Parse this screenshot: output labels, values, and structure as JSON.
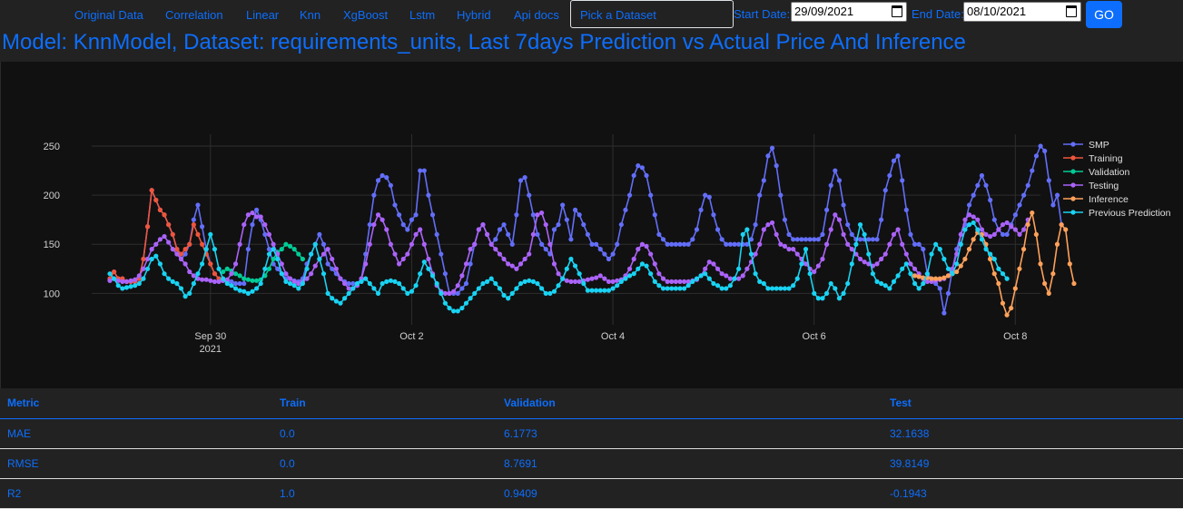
{
  "nav": {
    "links": [
      "Original Data",
      "Correlation",
      "Linear",
      "Knn",
      "XgBoost",
      "Lstm",
      "Hybrid",
      "Api docs"
    ],
    "dataset_placeholder": "Pick a Dataset",
    "start_label": "Start Date:",
    "start_value": "29/09/2021",
    "end_label": "End Date:",
    "end_value": "08/10/2021",
    "go_label": "GO"
  },
  "title": "Model: KnnModel, Dataset: requirements_units, Last 7days Prediction vs Actual Price And Inference",
  "chart_data": {
    "type": "line",
    "x_unit": "days",
    "x_ticks": [
      {
        "x": 1.0,
        "label": "Sep 30",
        "sublabel": "2021"
      },
      {
        "x": 3.0,
        "label": "Oct 2",
        "sublabel": ""
      },
      {
        "x": 5.0,
        "label": "Oct 4",
        "sublabel": ""
      },
      {
        "x": 7.0,
        "label": "Oct 6",
        "sublabel": ""
      },
      {
        "x": 9.0,
        "label": "Oct 8",
        "sublabel": ""
      }
    ],
    "y_ticks": [
      100,
      150,
      200,
      250
    ],
    "xlim": [
      0.0,
      9.25
    ],
    "ylim": [
      68,
      262
    ],
    "grid": true,
    "legend_position": "right",
    "series": [
      {
        "name": "SMP",
        "color": "#636efa",
        "x0": 0.0,
        "dx": 0.04167,
        "values": [
          115,
          122,
          115,
          115,
          112,
          112,
          112,
          115,
          135,
          168,
          205,
          195,
          185,
          180,
          170,
          160,
          145,
          135,
          140,
          150,
          175,
          190,
          168,
          145,
          130,
          120,
          115,
          113,
          112,
          112,
          110,
          110,
          110,
          145,
          170,
          185,
          175,
          160,
          145,
          130,
          125,
          120,
          115,
          115,
          113,
          112,
          115,
          130,
          140,
          150,
          160,
          150,
          130,
          125,
          120,
          115,
          112,
          110,
          110,
          110,
          115,
          140,
          170,
          200,
          215,
          220,
          218,
          210,
          190,
          180,
          170,
          165,
          175,
          180,
          225,
          225,
          200,
          180,
          160,
          140,
          120,
          100,
          100,
          100,
          105,
          110,
          130,
          150,
          165,
          170,
          160,
          150,
          155,
          165,
          170,
          160,
          150,
          180,
          215,
          218,
          200,
          180,
          160,
          150,
          145,
          140,
          165,
          170,
          190,
          175,
          155,
          185,
          180,
          170,
          160,
          150,
          150,
          145,
          140,
          135,
          140,
          150,
          170,
          185,
          200,
          220,
          230,
          228,
          220,
          200,
          180,
          160,
          155,
          150,
          150,
          150,
          150,
          150,
          150,
          155,
          165,
          185,
          200,
          198,
          180,
          165,
          155,
          150,
          150,
          150,
          150,
          150,
          150,
          155,
          170,
          200,
          215,
          240,
          248,
          230,
          200,
          175,
          160,
          155,
          155,
          155,
          155,
          155,
          155,
          155,
          160,
          185,
          210,
          225,
          215,
          190,
          170,
          160,
          155,
          155,
          155,
          155,
          155,
          155,
          175,
          205,
          220,
          235,
          240,
          215,
          185,
          160,
          150,
          150,
          145,
          120,
          115,
          110,
          105,
          80,
          100,
          125,
          145,
          160,
          170,
          190,
          200,
          210,
          220,
          210,
          195,
          175,
          165,
          160,
          160,
          170,
          180,
          190,
          200,
          210,
          225,
          240,
          250,
          245,
          215,
          190,
          200,
          170
        ]
      },
      {
        "name": "Training",
        "color": "#ef553b",
        "x0": 0.0,
        "dx": 0.04167,
        "values": [
          115,
          122,
          115,
          115,
          112,
          112,
          112,
          115,
          135,
          168,
          205,
          195,
          185,
          180,
          170,
          160,
          145,
          140,
          145,
          150,
          170,
          160,
          150,
          140,
          130,
          120,
          115
        ]
      },
      {
        "name": "Validation",
        "color": "#00cc96",
        "x0": 1.125,
        "dx": 0.04167,
        "values": [
          122,
          125,
          123,
          120,
          118,
          115,
          114,
          113,
          113,
          114,
          118,
          125,
          135,
          142,
          145,
          150,
          148,
          145,
          140,
          135
        ]
      },
      {
        "name": "Testing",
        "color": "#ab63fa",
        "x0": 0.0,
        "dx": 0.04167,
        "values": [
          113,
          115,
          113,
          112,
          112,
          113,
          114,
          118,
          125,
          135,
          145,
          150,
          155,
          158,
          152,
          145,
          140,
          135,
          130,
          122,
          118,
          115,
          114,
          114,
          113,
          112,
          112,
          113,
          114,
          120,
          130,
          150,
          170,
          180,
          182,
          178,
          178,
          170,
          160,
          150,
          140,
          130,
          120,
          115,
          112,
          110,
          112,
          115,
          120,
          128,
          135,
          140,
          145,
          135,
          125,
          115,
          110,
          105,
          105,
          108,
          115,
          130,
          150,
          170,
          180,
          175,
          165,
          150,
          140,
          130,
          135,
          140,
          150,
          160,
          165,
          150,
          135,
          120,
          108,
          102,
          100,
          100,
          102,
          108,
          118,
          130,
          145,
          150,
          165,
          170,
          160,
          150,
          145,
          140,
          135,
          130,
          128,
          125,
          130,
          135,
          140,
          160,
          180,
          182,
          170,
          150,
          130,
          120,
          115,
          113,
          112,
          112,
          112,
          113,
          114,
          115,
          116,
          118,
          115,
          112,
          112,
          113,
          114,
          118,
          125,
          135,
          145,
          150,
          148,
          140,
          130,
          120,
          115,
          112,
          112,
          112,
          112,
          112,
          112,
          113,
          114,
          118,
          125,
          132,
          130,
          125,
          120,
          118,
          115,
          115,
          115,
          118,
          125,
          132,
          140,
          150,
          165,
          170,
          172,
          160,
          150,
          148,
          145,
          145,
          140,
          135,
          130,
          125,
          122,
          128,
          135,
          150,
          165,
          180,
          175,
          160,
          150,
          145,
          140,
          135,
          132,
          130,
          128,
          130,
          135,
          140,
          150,
          160,
          165,
          150,
          140,
          130,
          125,
          120,
          115,
          112,
          112,
          113,
          114,
          115,
          118,
          125,
          140,
          160,
          175,
          180,
          178,
          175,
          165,
          160,
          158,
          160,
          165,
          170,
          172,
          168,
          165,
          160,
          165,
          175
        ]
      },
      {
        "name": "Inference",
        "color": "#ffa15a",
        "x0": 8.0,
        "dx": 0.04167,
        "values": [
          118,
          117,
          116,
          116,
          115,
          115,
          115,
          116,
          118,
          120,
          122,
          128,
          135,
          145,
          155,
          162,
          160,
          150,
          135,
          120,
          110,
          90,
          78,
          85,
          105,
          125,
          145,
          170,
          182,
          160,
          130,
          110,
          100,
          120,
          150,
          170,
          165,
          130,
          110
        ]
      },
      {
        "name": "Previous Prediction",
        "color": "#19d3f3",
        "x0": 0.0,
        "dx": 0.04167,
        "values": [
          120,
          115,
          108,
          105,
          106,
          107,
          108,
          110,
          115,
          125,
          135,
          138,
          130,
          120,
          115,
          112,
          110,
          105,
          97,
          100,
          110,
          120,
          130,
          145,
          160,
          145,
          125,
          115,
          110,
          108,
          105,
          103,
          102,
          100,
          102,
          105,
          110,
          125,
          140,
          145,
          135,
          120,
          112,
          110,
          108,
          105,
          110,
          125,
          140,
          150,
          135,
          120,
          100,
          95,
          92,
          90,
          95,
          100,
          105,
          110,
          112,
          115,
          110,
          105,
          100,
          110,
          112,
          113,
          112,
          110,
          105,
          100,
          102,
          108,
          120,
          132,
          125,
          118,
          110,
          100,
          90,
          85,
          82,
          82,
          85,
          90,
          95,
          100,
          105,
          110,
          112,
          115,
          110,
          105,
          98,
          95,
          100,
          105,
          110,
          112,
          113,
          112,
          110,
          105,
          100,
          100,
          102,
          108,
          115,
          125,
          135,
          128,
          120,
          110,
          103,
          103,
          103,
          103,
          103,
          103,
          105,
          108,
          112,
          115,
          118,
          120,
          125,
          130,
          128,
          120,
          112,
          108,
          105,
          105,
          105,
          105,
          105,
          105,
          108,
          112,
          115,
          118,
          120,
          115,
          110,
          108,
          105,
          105,
          108,
          115,
          125,
          160,
          165,
          140,
          120,
          112,
          110,
          105,
          105,
          105,
          105,
          105,
          105,
          108,
          115,
          130,
          145,
          120,
          100,
          95,
          95,
          100,
          110,
          105,
          95,
          100,
          110,
          130,
          150,
          170,
          160,
          140,
          120,
          112,
          110,
          108,
          105,
          112,
          118,
          125,
          130,
          120,
          110,
          105,
          110,
          120,
          140,
          150,
          145,
          135,
          125,
          120,
          130,
          150,
          165,
          170,
          172,
          165,
          155,
          145,
          140,
          135,
          125,
          120,
          115
        ]
      }
    ]
  },
  "table": {
    "headers": [
      "Metric",
      "Train",
      "Validation",
      "Test"
    ],
    "rows": [
      [
        "MAE",
        "0.0",
        "6.1773",
        "32.1638"
      ],
      [
        "RMSE",
        "0.0",
        "8.7691",
        "39.8149"
      ],
      [
        "R2",
        "1.0",
        "0.9409",
        "-0.1943"
      ]
    ]
  }
}
